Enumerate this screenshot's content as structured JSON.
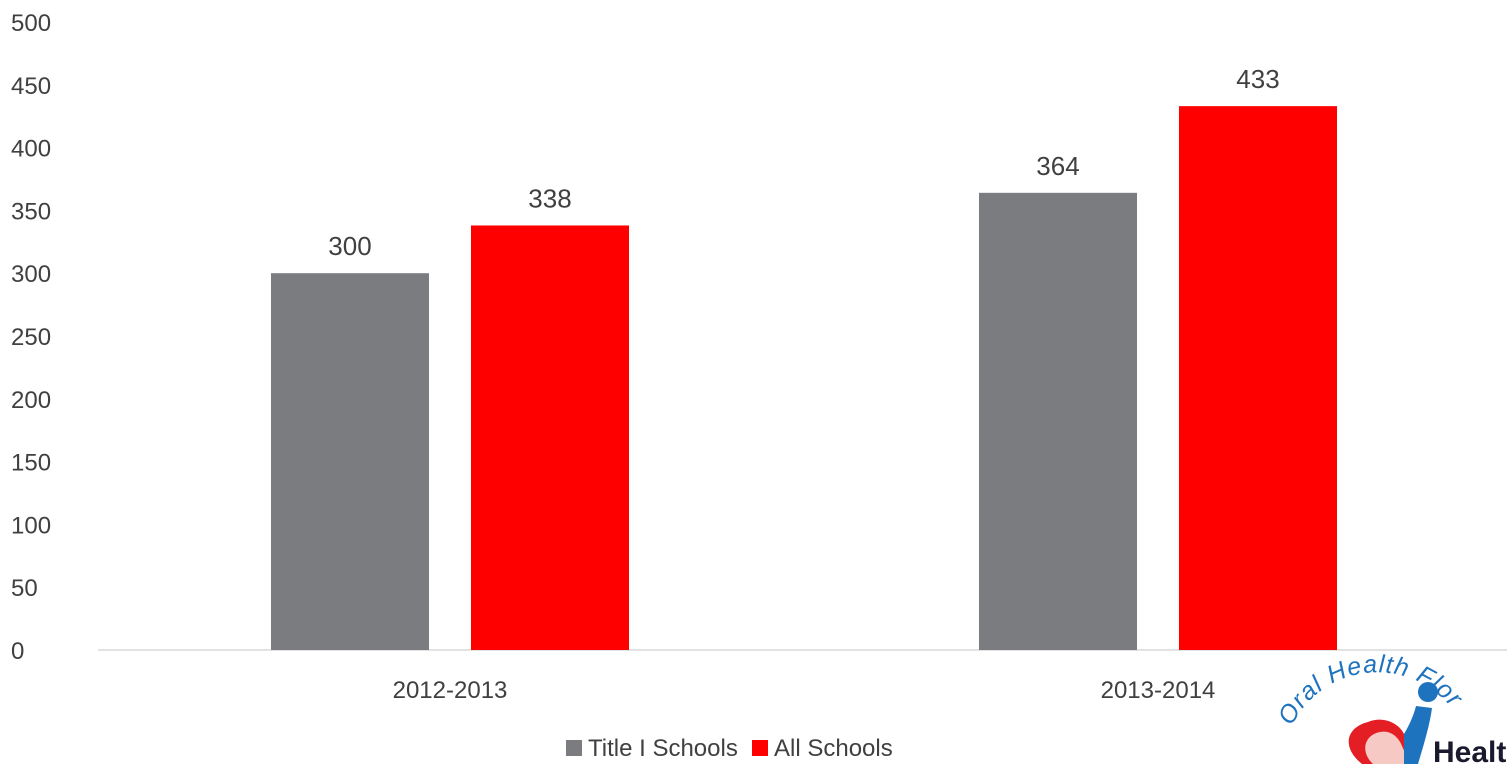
{
  "chart_data": {
    "type": "bar",
    "categories": [
      "2012-2013",
      "2013-2014"
    ],
    "series": [
      {
        "name": "Title I Schools",
        "values": [
          300,
          364
        ],
        "color": "#7b7c80"
      },
      {
        "name": "All Schools",
        "values": [
          338,
          433
        ],
        "color": "#ff0000"
      }
    ],
    "ylim": [
      0,
      500
    ],
    "yticks": [
      0,
      50,
      100,
      150,
      200,
      250,
      300,
      350,
      400,
      450,
      500
    ],
    "grid": false,
    "legend": "bottom",
    "data_labels": true
  },
  "logo": {
    "arc_text": "Oral Health Florida",
    "word": "Healt",
    "colors": {
      "blue": "#1e73be",
      "red": "#e31e24",
      "pink": "#f6c9c4"
    }
  }
}
